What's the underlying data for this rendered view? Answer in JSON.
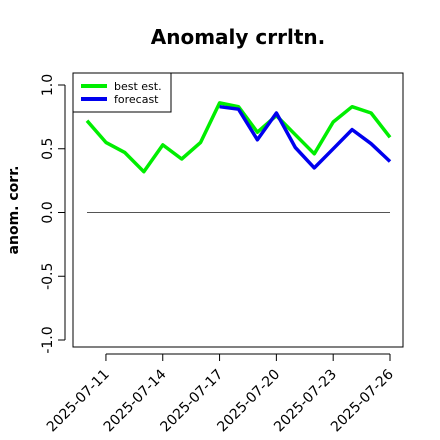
{
  "chart_data": {
    "type": "line",
    "title": "Anomaly crrltn.",
    "xlabel": "",
    "ylabel": "anom. corr.",
    "ylim": [
      -1.0,
      1.0
    ],
    "yticks": [
      "-1.0",
      "-0.5",
      "0.0",
      "0.5",
      "1.0"
    ],
    "x": [
      "2025-07-10",
      "2025-07-11",
      "2025-07-12",
      "2025-07-13",
      "2025-07-14",
      "2025-07-15",
      "2025-07-16",
      "2025-07-17",
      "2025-07-18",
      "2025-07-19",
      "2025-07-20",
      "2025-07-21",
      "2025-07-22",
      "2025-07-23",
      "2025-07-24",
      "2025-07-25",
      "2025-07-26"
    ],
    "xtick_labels": [
      "2025-07-11",
      "2025-07-14",
      "2025-07-17",
      "2025-07-20",
      "2025-07-23",
      "2025-07-26"
    ],
    "highlight_tick": "2025-07-17",
    "highlight_tick_color": "#228B22",
    "reference_line": 0.0,
    "legend_position": "top-left",
    "series": [
      {
        "name": "best est.",
        "color": "#00ee00",
        "values": [
          0.72,
          0.55,
          0.47,
          0.32,
          0.53,
          0.42,
          0.55,
          0.86,
          0.83,
          0.63,
          0.76,
          0.61,
          0.46,
          0.71,
          0.83,
          0.78,
          0.59
        ]
      },
      {
        "name": "forecast",
        "color": "#0000ee",
        "values": [
          null,
          null,
          null,
          null,
          null,
          null,
          null,
          0.83,
          0.81,
          0.57,
          0.78,
          0.51,
          0.35,
          0.5,
          0.65,
          0.54,
          0.4
        ]
      }
    ]
  }
}
